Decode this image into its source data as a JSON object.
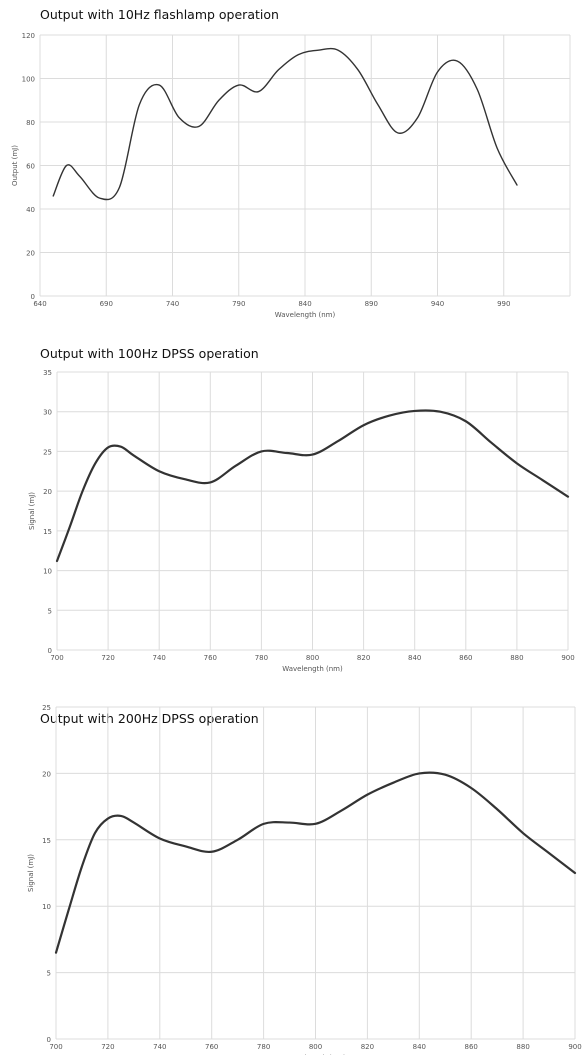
{
  "chart_data": [
    {
      "type": "line",
      "title": "Output with 10Hz flashlamp operation",
      "xlabel": "Wavelength (nm)",
      "ylabel": "Output (mJ)",
      "x_ticks": [
        "640",
        "690",
        "740",
        "790",
        "840",
        "890",
        "940",
        "990"
      ],
      "y_ticks": [
        "0",
        "20",
        "40",
        "60",
        "80",
        "100",
        "120"
      ],
      "xlim": [
        640,
        1040
      ],
      "ylim": [
        0,
        120
      ],
      "grid": true,
      "line_color": "#333333",
      "series": [
        {
          "x": [
            650,
            660,
            670,
            685,
            700,
            715,
            730,
            745,
            760,
            775,
            790,
            805,
            820,
            835,
            850,
            865,
            880,
            895,
            910,
            925,
            940,
            955,
            970,
            985,
            1000
          ],
          "y": [
            46,
            60,
            55,
            45,
            50,
            88,
            97,
            82,
            78,
            90,
            97,
            94,
            104,
            111,
            113,
            113,
            104,
            88,
            75,
            82,
            103,
            108,
            95,
            68,
            51
          ]
        }
      ]
    },
    {
      "type": "line",
      "title": "Output with 100Hz DPSS operation",
      "xlabel": "Wavelength (nm)",
      "ylabel": "Signal (mJ)",
      "x_ticks": [
        "700",
        "720",
        "740",
        "760",
        "780",
        "800",
        "820",
        "840",
        "860",
        "880",
        "900"
      ],
      "y_ticks": [
        "0",
        "5",
        "10",
        "15",
        "20",
        "25",
        "30",
        "35"
      ],
      "xlim": [
        700,
        900
      ],
      "ylim": [
        0,
        35
      ],
      "grid": true,
      "line_color": "#333333",
      "series": [
        {
          "x": [
            700,
            705,
            710,
            715,
            720,
            725,
            730,
            740,
            750,
            760,
            770,
            780,
            790,
            800,
            810,
            820,
            830,
            840,
            850,
            860,
            870,
            880,
            890,
            900
          ],
          "y": [
            11.2,
            15.5,
            20,
            23.5,
            25.5,
            25.6,
            24.5,
            22.5,
            21.5,
            21.1,
            23.2,
            25,
            24.8,
            24.6,
            26.3,
            28.3,
            29.5,
            30.1,
            30,
            28.8,
            26.1,
            23.5,
            21.4,
            19.3
          ]
        }
      ]
    },
    {
      "type": "line",
      "title": "Output with 200Hz DPSS operation",
      "xlabel": "Wavelength (nm)",
      "ylabel": "Signal (mJ)",
      "x_ticks": [
        "700",
        "720",
        "740",
        "760",
        "780",
        "800",
        "820",
        "840",
        "860",
        "880",
        "900"
      ],
      "y_ticks": [
        "0",
        "5",
        "10",
        "15",
        "20",
        "25"
      ],
      "xlim": [
        700,
        900
      ],
      "ylim": [
        0,
        25
      ],
      "grid": true,
      "line_color": "#333333",
      "series": [
        {
          "x": [
            700,
            705,
            710,
            715,
            720,
            725,
            730,
            740,
            750,
            760,
            770,
            780,
            790,
            800,
            810,
            820,
            830,
            840,
            850,
            860,
            870,
            880,
            890,
            900
          ],
          "y": [
            6.5,
            9.8,
            13,
            15.5,
            16.6,
            16.8,
            16.3,
            15.1,
            14.5,
            14.1,
            15,
            16.2,
            16.3,
            16.2,
            17.2,
            18.4,
            19.3,
            20,
            19.9,
            18.9,
            17.3,
            15.5,
            14,
            12.5
          ]
        }
      ]
    }
  ]
}
